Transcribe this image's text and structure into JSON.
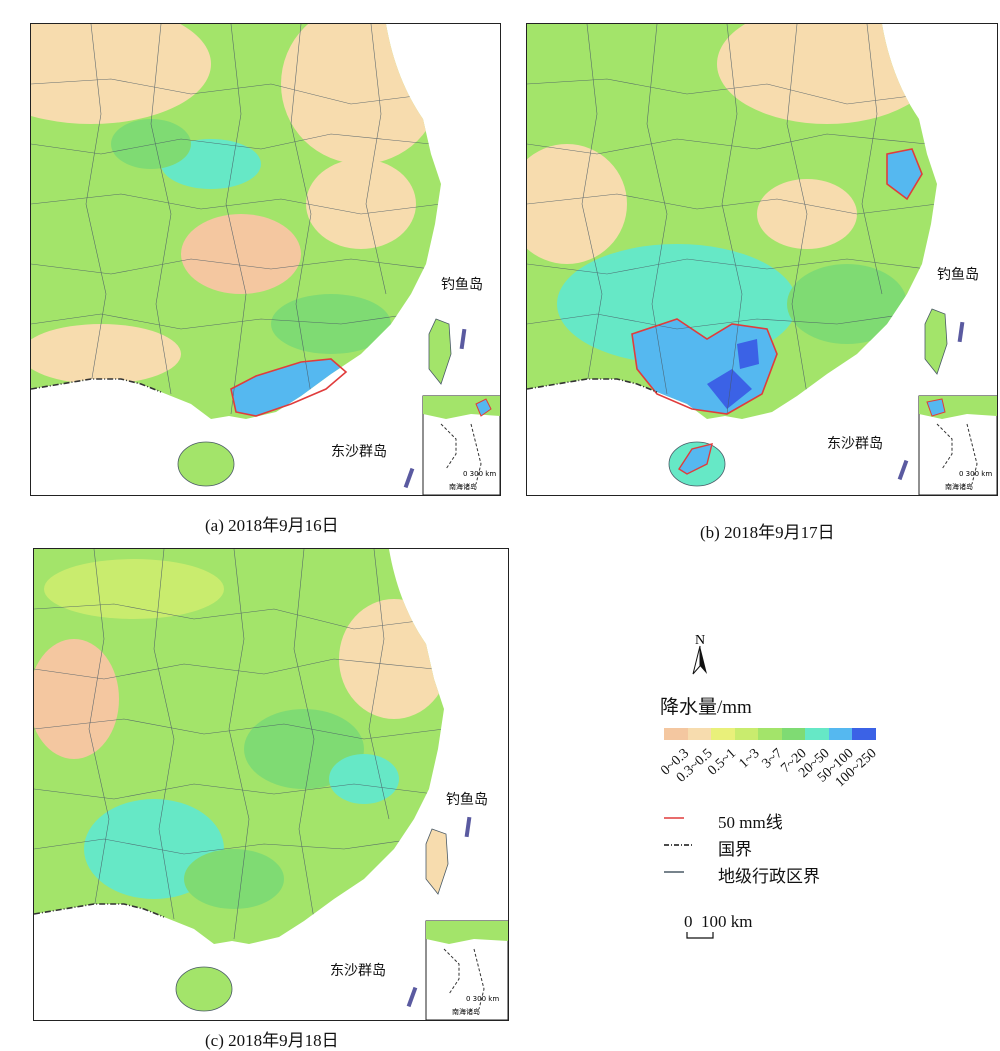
{
  "panels": [
    {
      "id": "a",
      "caption": "(a) 2018年9月16日"
    },
    {
      "id": "b",
      "caption": "(b) 2018年9月17日"
    },
    {
      "id": "c",
      "caption": "(c) 2018年9月18日"
    }
  ],
  "map_labels": {
    "diaoyu": "钓鱼岛",
    "dongsha": "东沙群岛",
    "inset_scale": "0 300 km",
    "nanhai": "南海诸岛"
  },
  "legend": {
    "north": "N",
    "title": "降水量/mm",
    "classes": [
      {
        "label": "0~0.3",
        "color": "#f4c7a0"
      },
      {
        "label": "0.3~0.5",
        "color": "#f7dcae"
      },
      {
        "label": "0.5~1",
        "color": "#e9f07a"
      },
      {
        "label": "1~3",
        "color": "#c9ec6e"
      },
      {
        "label": "3~7",
        "color": "#a3e46a"
      },
      {
        "label": "7~20",
        "color": "#7fdb73"
      },
      {
        "label": "20~50",
        "color": "#66e8c6"
      },
      {
        "label": "50~100",
        "color": "#55b8f0"
      },
      {
        "label": "100~250",
        "color": "#3b62e6"
      }
    ],
    "line_50mm": "50 mm线",
    "line_50mm_color": "#e03c3c",
    "border_national": "国界",
    "border_prefecture": "地级行政区界",
    "scale": "0  100 km"
  },
  "colors": {
    "prefecture_line": "#4a5a66",
    "sea": "#ffffff",
    "taiwan": "#a3e46a"
  }
}
